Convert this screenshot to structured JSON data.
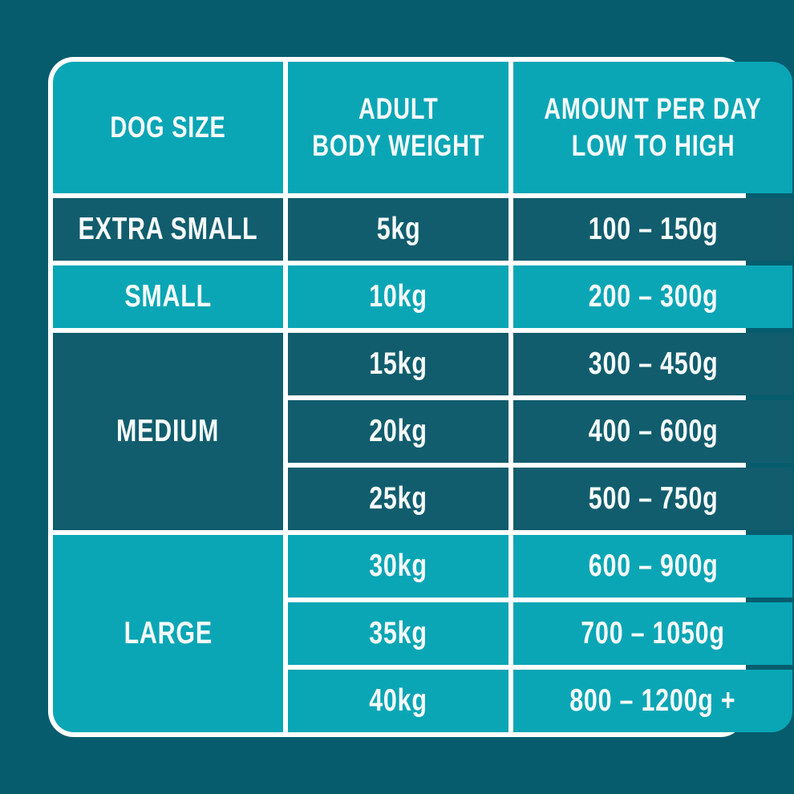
{
  "page": {
    "background": "#065C6D"
  },
  "table": {
    "colors": {
      "turquoise": "#0AA6B5",
      "dark_cell": "#115D6D",
      "grid": "#FFFFFF",
      "text": "#F7FBFB"
    },
    "headers": [
      {
        "lines": [
          "DOG SIZE"
        ]
      },
      {
        "lines": [
          "ADULT",
          "BODY WEIGHT"
        ]
      },
      {
        "lines": [
          "AMOUNT PER DAY",
          "LOW TO HIGH"
        ]
      }
    ],
    "groups": [
      {
        "size": "EXTRA SMALL",
        "shade": "dark",
        "rows": [
          {
            "weight": "5kg",
            "amount": "100 – 150g"
          }
        ]
      },
      {
        "size": "SMALL",
        "shade": "light",
        "rows": [
          {
            "weight": "10kg",
            "amount": "200 – 300g"
          }
        ]
      },
      {
        "size": "MEDIUM",
        "shade": "dark",
        "rows": [
          {
            "weight": "15kg",
            "amount": "300 – 450g"
          },
          {
            "weight": "20kg",
            "amount": "400 – 600g"
          },
          {
            "weight": "25kg",
            "amount": "500 – 750g"
          }
        ]
      },
      {
        "size": "LARGE",
        "shade": "light",
        "rows": [
          {
            "weight": "30kg",
            "amount": "600 – 900g"
          },
          {
            "weight": "35kg",
            "amount": "700 – 1050g"
          },
          {
            "weight": "40kg",
            "amount": "800 – 1200g +"
          }
        ]
      }
    ]
  }
}
